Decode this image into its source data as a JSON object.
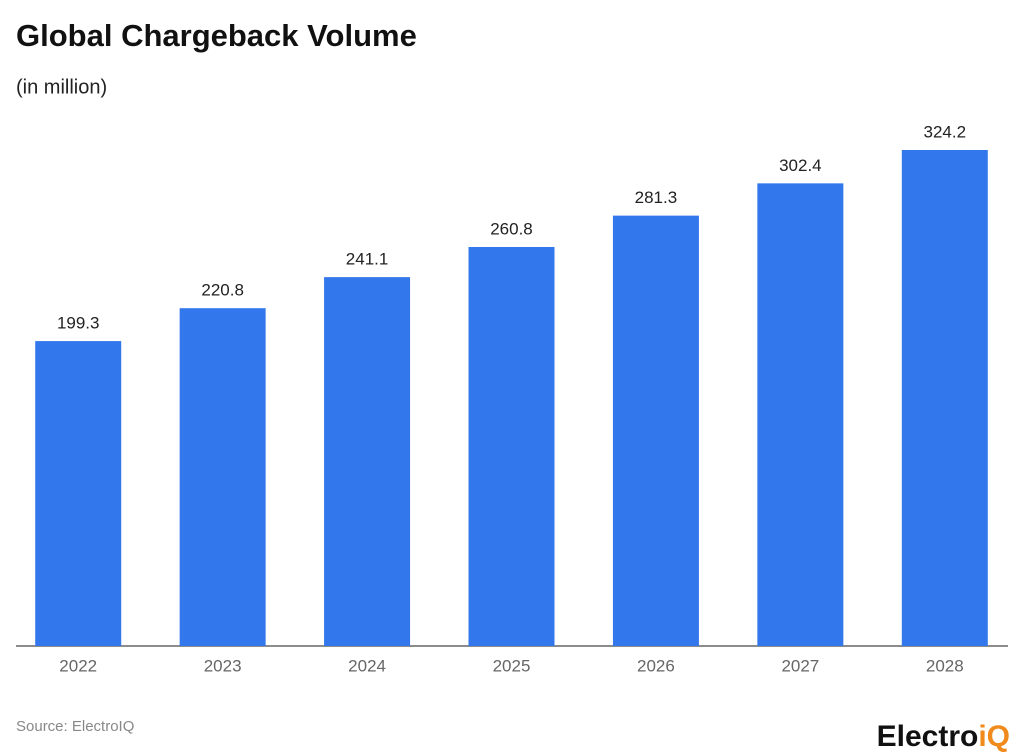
{
  "chart_data": {
    "type": "bar",
    "title": "Global Chargeback Volume",
    "subtitle": "(in million)",
    "categories": [
      "2022",
      "2023",
      "2024",
      "2025",
      "2026",
      "2027",
      "2028"
    ],
    "values": [
      199.3,
      220.8,
      241.1,
      260.8,
      281.3,
      302.4,
      324.2
    ],
    "color": "#3377ec",
    "source": "Source: ElectroIQ"
  },
  "logo": {
    "main": "Electro",
    "accent": "iQ"
  }
}
